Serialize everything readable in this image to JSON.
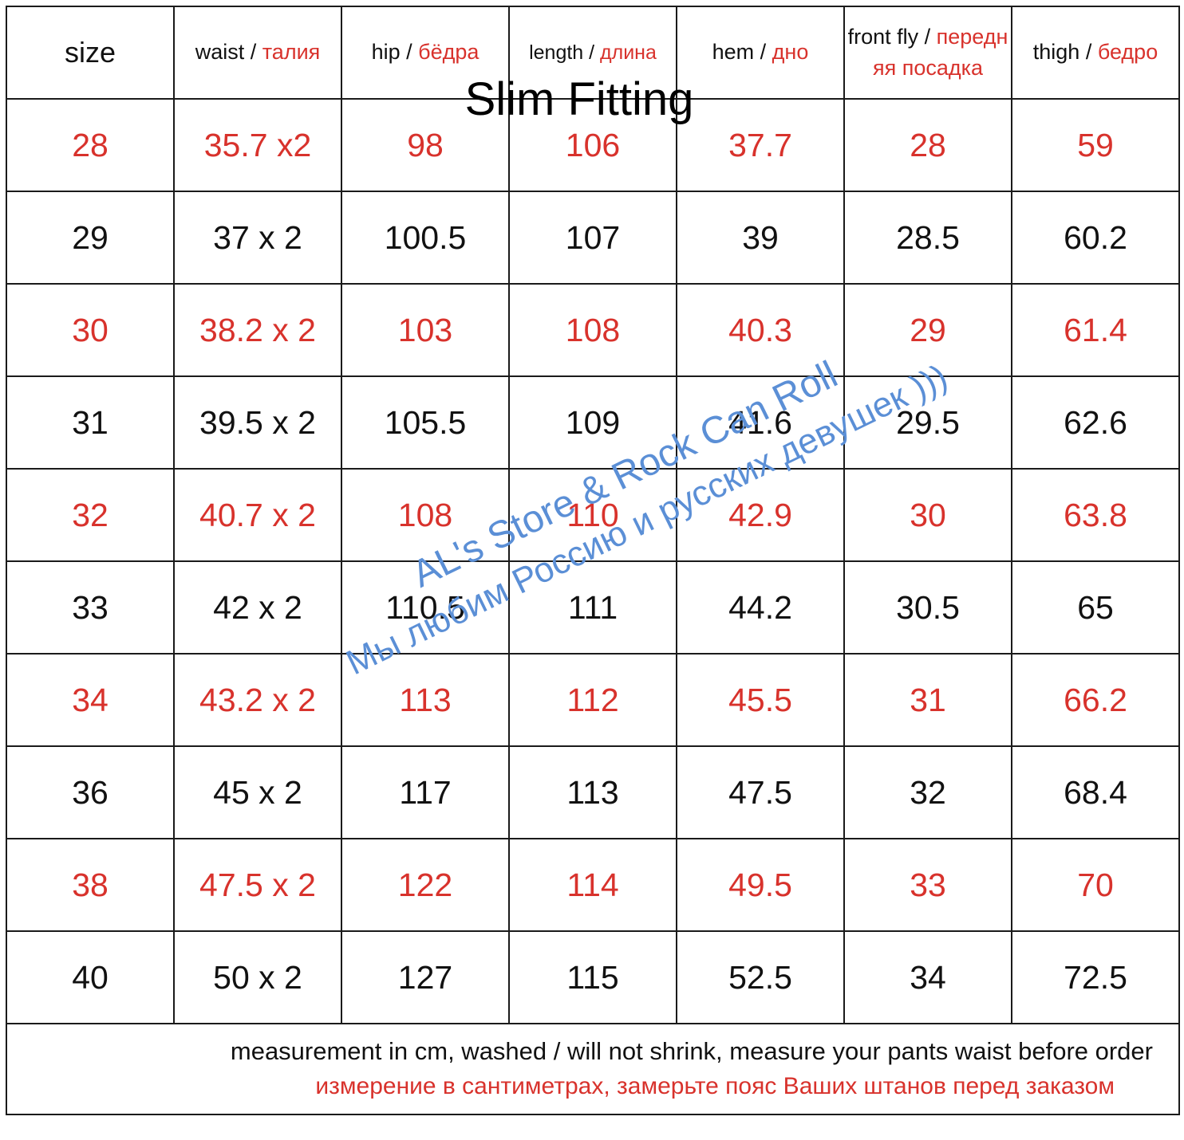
{
  "title": "Slim Fitting",
  "columns": [
    {
      "en": "size",
      "sep": "",
      "ru": ""
    },
    {
      "en": "waist",
      "sep": " / ",
      "ru": "талия"
    },
    {
      "en": "hip",
      "sep": " / ",
      "ru": "бёдра"
    },
    {
      "en": "length",
      "sep": " / ",
      "ru": "длина"
    },
    {
      "en": "hem",
      "sep": " / ",
      "ru": "дно"
    },
    {
      "en": "front fly",
      "sep": " / ",
      "ru": "передняя посадка"
    },
    {
      "en": "thigh",
      "sep": " / ",
      "ru": "бедро"
    }
  ],
  "rows": [
    [
      "28",
      "35.7 x2",
      "98",
      "106",
      "37.7",
      "28",
      "59"
    ],
    [
      "29",
      "37 x 2",
      "100.5",
      "107",
      "39",
      "28.5",
      "60.2"
    ],
    [
      "30",
      "38.2 x 2",
      "103",
      "108",
      "40.3",
      "29",
      "61.4"
    ],
    [
      "31",
      "39.5 x 2",
      "105.5",
      "109",
      "41.6",
      "29.5",
      "62.6"
    ],
    [
      "32",
      "40.7 x 2",
      "108",
      "110",
      "42.9",
      "30",
      "63.8"
    ],
    [
      "33",
      "42 x 2",
      "110.5",
      "111",
      "44.2",
      "30.5",
      "65"
    ],
    [
      "34",
      "43.2 x 2",
      "113",
      "112",
      "45.5",
      "31",
      "66.2"
    ],
    [
      "36",
      "45 x 2",
      "117",
      "113",
      "47.5",
      "32",
      "68.4"
    ],
    [
      "38",
      "47.5 x 2",
      "122",
      "114",
      "49.5",
      "33",
      "70"
    ],
    [
      "40",
      "50 x 2",
      "127",
      "115",
      "52.5",
      "34",
      "72.5"
    ]
  ],
  "row_colors": [
    "red",
    "black",
    "red",
    "black",
    "red",
    "black",
    "red",
    "black",
    "red",
    "black"
  ],
  "note": {
    "en": "measurement in cm, washed / will not shrink, measure your pants waist before order",
    "ru": "измерение в сантиметрах, замерьте пояс Ваших штанов перед заказом"
  },
  "watermark": {
    "line1": "AL's Store & Rock Can Roll",
    "line2": "Мы любим Россию и русских девушек )))"
  },
  "colors": {
    "accent_red": "#d8322c",
    "text_black": "#111111",
    "watermark_blue": "#5b8fd6",
    "border": "#1a1a1a"
  }
}
